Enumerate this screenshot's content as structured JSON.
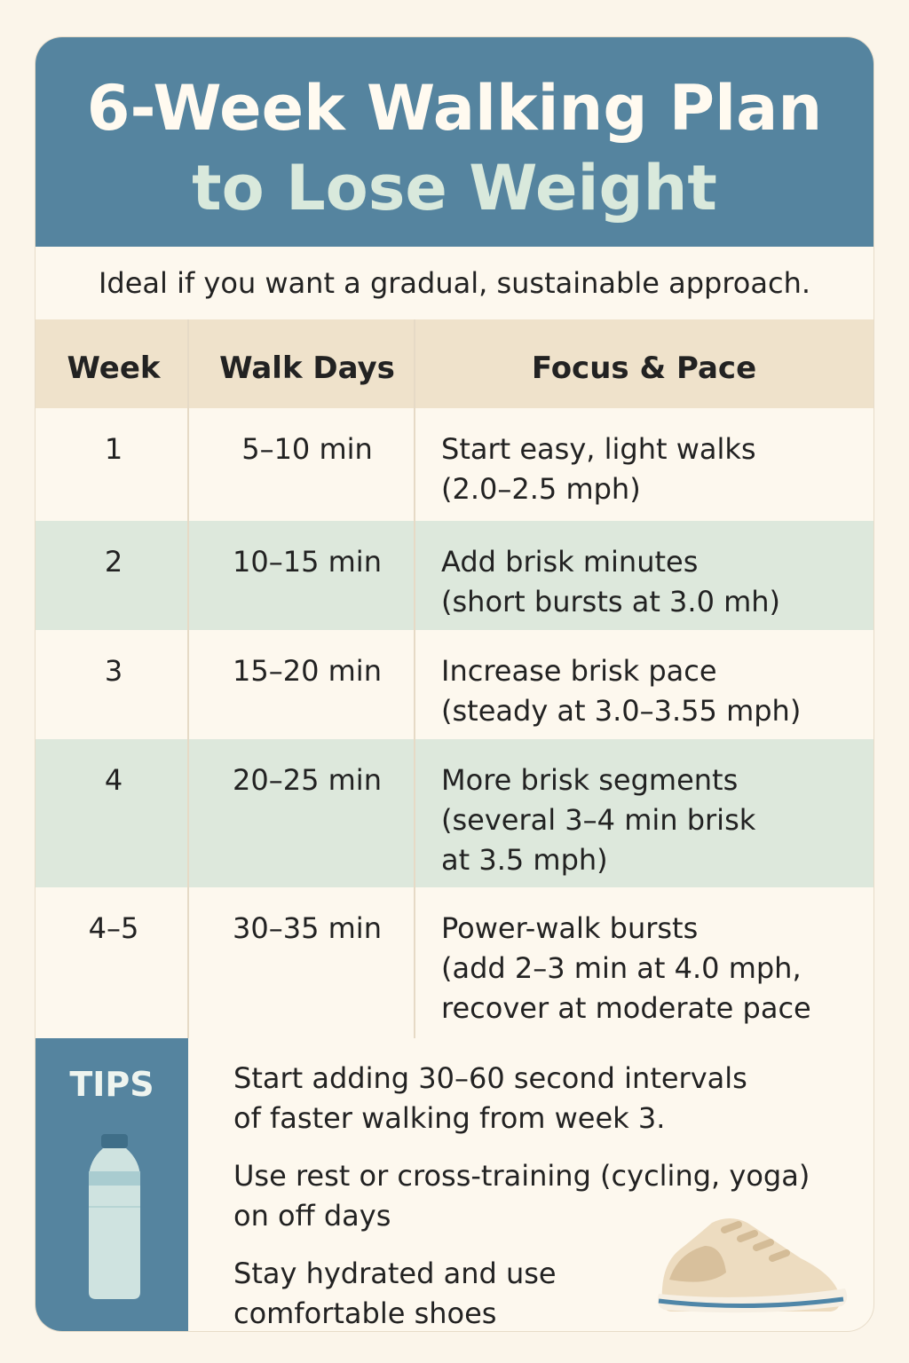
{
  "header": {
    "title_lines": [
      "6-Week Walking Plan",
      "to Lose Weight"
    ]
  },
  "subtitle": "Ideal if you want a gradual, sustainable approach.",
  "table": {
    "columns": [
      "Week",
      "Walk Days",
      "Focus & Pace"
    ],
    "rows": [
      {
        "week": "1",
        "walk_days": "5–10 min",
        "focus": [
          "Start easy, light walks",
          "(2.0–2.5 mph)"
        ]
      },
      {
        "week": "2",
        "walk_days": "10–15 min",
        "focus": [
          "Add brisk minutes",
          "(short bursts at 3.0 mh)"
        ]
      },
      {
        "week": "3",
        "walk_days": "15–20 min",
        "focus": [
          "Increase brisk pace",
          "(steady at 3.0–3.55 mph)"
        ]
      },
      {
        "week": "4",
        "walk_days": "20–25 min",
        "focus": [
          "More brisk segments",
          "(several 3–4 min brisk",
          "at 3.5 mph)"
        ]
      },
      {
        "week": "4–5",
        "walk_days": "30–35 min",
        "focus": [
          "Power-walk bursts",
          "(add 2–3 min at 4.0 mph,",
          "recover at moderate pace"
        ]
      }
    ]
  },
  "tips": {
    "label": "TIPS",
    "items": [
      [
        "Start adding 30–60 second intervals",
        "of faster walking from week 3."
      ],
      [
        "Use rest or cross-training (cycling, yoga)",
        "on off days"
      ],
      [
        "Stay hydrated and use",
        "comfortable shoes"
      ]
    ]
  }
}
